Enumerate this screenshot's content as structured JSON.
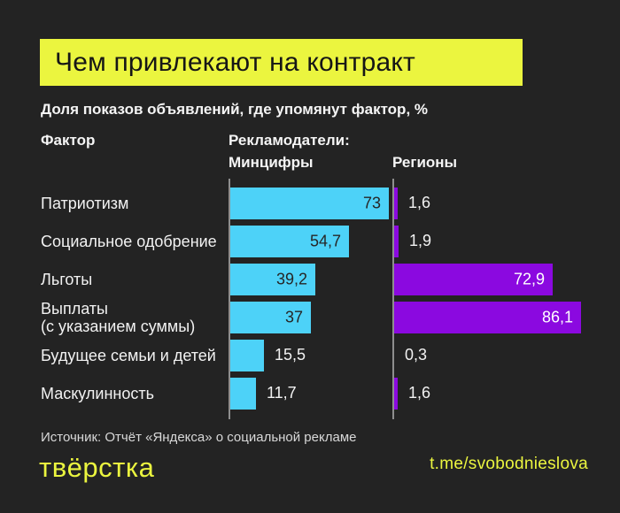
{
  "title": "Чем привлекают на контракт",
  "subtitle": "Доля показов объявлений, где упомянут фактор, %",
  "columns": {
    "factor": "Фактор",
    "advertisers": "Рекламодатели:",
    "minzifry": "Минцифры",
    "regions": "Регионы"
  },
  "chart_data": {
    "type": "bar",
    "orientation": "horizontal",
    "title": "Чем привлекают на контракт",
    "subtitle": "Доля показов объявлений, где упомянут фактор, %",
    "unit": "%",
    "xlim": [
      0,
      88
    ],
    "categories": [
      "Патриотизм",
      "Социальное одобрение",
      "Льготы",
      "Выплаты\n(с указанием суммы)",
      "Будущее семьи и детей",
      "Маскулинность"
    ],
    "series": [
      {
        "name": "Минцифры",
        "color": "#4DD2F8",
        "inside_label_color": "#262626",
        "values": [
          73,
          54.7,
          39.2,
          37,
          15.5,
          11.7
        ],
        "value_labels": [
          "73",
          "54,7",
          "39,2",
          "37",
          "15,5",
          "11,7"
        ]
      },
      {
        "name": "Регионы",
        "color": "#8B09E0",
        "inside_label_color": "#ffffff",
        "values": [
          1.6,
          1.9,
          72.9,
          86.1,
          0.3,
          1.6
        ],
        "value_labels": [
          "1,6",
          "1,9",
          "72,9",
          "86,1",
          "0,3",
          "1,6"
        ]
      }
    ],
    "legend_position": "column-headers",
    "grid": false
  },
  "source": "Источник: Отчёт «Яндекса» о социальной рекламе",
  "footer": {
    "logo": "твёрстка",
    "link": "t.me/svobodnieslova"
  },
  "colors": {
    "background": "#232323",
    "accent_yellow": "#EBF53F",
    "bar_blue": "#4DD2F8",
    "bar_purple": "#8B09E0",
    "axis_line": "#8E8E8E",
    "text": "#FFFFFF"
  }
}
